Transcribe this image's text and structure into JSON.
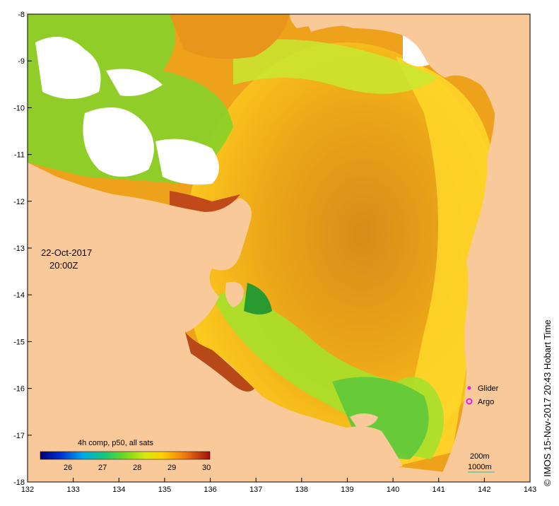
{
  "map": {
    "date": "22-Oct-2017",
    "time": "20:00Z",
    "credit": "© IMOS 15-Nov-2017 20:43 Hobart Time",
    "lon_ticks": [
      "132",
      "133",
      "134",
      "135",
      "136",
      "137",
      "138",
      "139",
      "140",
      "141",
      "142",
      "143"
    ],
    "lat_ticks": [
      "-8",
      "-9",
      "-10",
      "-11",
      "-12",
      "-13",
      "-14",
      "-15",
      "-16",
      "-17",
      "-18"
    ],
    "lon_range": [
      132,
      143
    ],
    "lat_range": [
      -18,
      -8
    ],
    "colors": {
      "land": "#f9c99a",
      "cloud": "#ffffff",
      "warm": "#e59a1c",
      "hot": "#b8461a",
      "mid": "#ffd21e",
      "cool": "#a6e82a",
      "cooler": "#4fbf32"
    }
  },
  "legend": {
    "glider_label": "Glider",
    "argo_label": "Argo",
    "glider_color": "#e020e0",
    "argo_color": "#e020e0"
  },
  "depth": {
    "label_200": "200m",
    "label_1000": "1000m"
  },
  "colorbar": {
    "title": "4h comp, p50, all sats",
    "ticks": [
      "26",
      "27",
      "28",
      "29",
      "30"
    ],
    "min": 25.2,
    "max": 30.1
  }
}
